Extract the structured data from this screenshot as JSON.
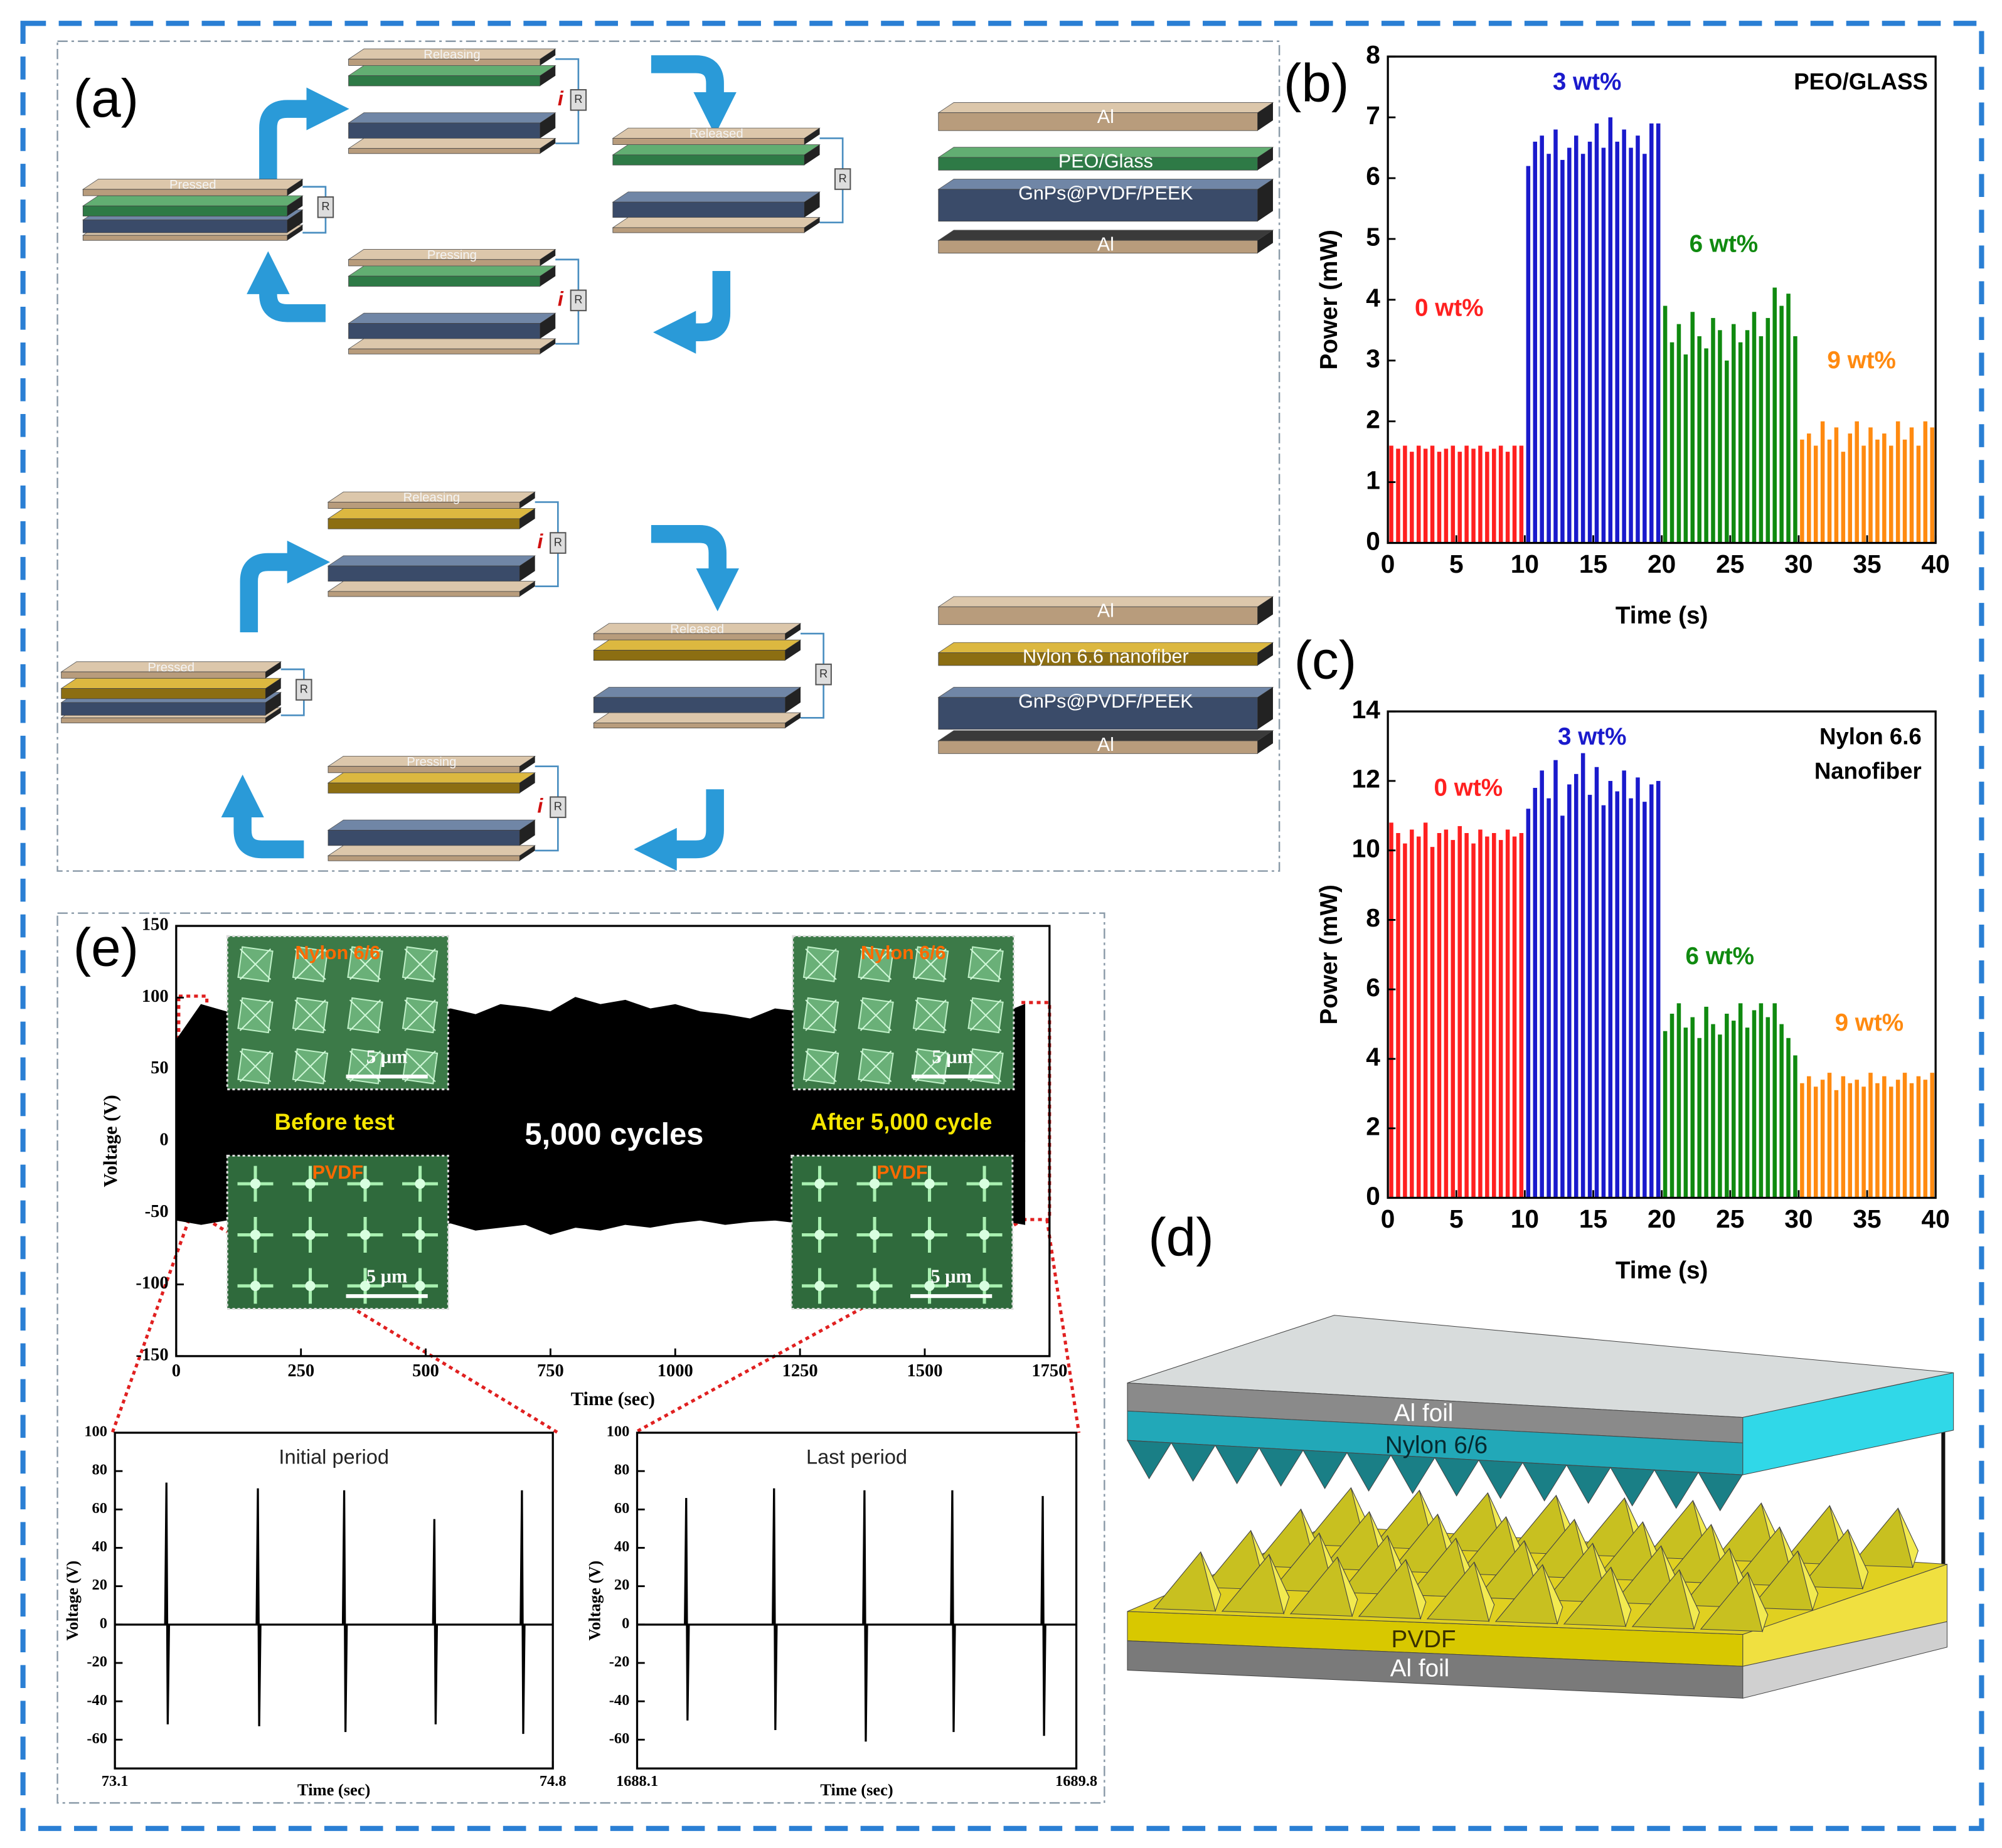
{
  "panel_labels": [
    "(a)",
    "(b)",
    "(c)",
    "(d)",
    "(e)"
  ],
  "diagram_a": {
    "cycles": [
      {
        "steps": [
          "Releasing",
          "Released",
          "Pressed",
          "Pressing"
        ],
        "layers": [
          "Al",
          "PEO/Glass",
          "GnPs@PVDF/PEEK",
          "Al"
        ]
      },
      {
        "steps": [
          "Releasing",
          "Released",
          "Pressed",
          "Pressing"
        ],
        "layers": [
          "Al",
          "Nylon 6.6 nanofiber",
          "GnPs@PVDF/PEEK",
          "Al"
        ]
      }
    ],
    "resistor": "R",
    "current": "i"
  },
  "diagram_d": {
    "layers": [
      "Al foil",
      "Nylon 6/6",
      "PVDF",
      "Al foil"
    ]
  },
  "chart_data": [
    {
      "type": "bar",
      "xlabel": "Time (s)",
      "ylabel": "Power (mW)",
      "annotation": [
        "PEO/GLASS"
      ],
      "xlim": [
        0,
        40
      ],
      "xticks": [
        0,
        5,
        10,
        15,
        20,
        25,
        30,
        35,
        40
      ],
      "ylim": [
        0,
        8
      ],
      "yticks": [
        0,
        1,
        2,
        3,
        4,
        5,
        6,
        7,
        8
      ],
      "series": [
        {
          "name": "0 wt%",
          "color": "#ff2020",
          "x": [
            0.25,
            0.75,
            1.25,
            1.75,
            2.25,
            2.75,
            3.25,
            3.75,
            4.25,
            4.75,
            5.25,
            5.75,
            6.25,
            6.75,
            7.25,
            7.75,
            8.25,
            8.75,
            9.25,
            9.75
          ],
          "values": [
            1.6,
            1.55,
            1.6,
            1.5,
            1.6,
            1.55,
            1.6,
            1.5,
            1.55,
            1.6,
            1.5,
            1.6,
            1.55,
            1.6,
            1.5,
            1.55,
            1.6,
            1.5,
            1.6,
            1.6
          ]
        },
        {
          "name": "3 wt%",
          "color": "#1a1acc",
          "x": [
            10.25,
            10.75,
            11.25,
            11.75,
            12.25,
            12.75,
            13.25,
            13.75,
            14.25,
            14.75,
            15.25,
            15.75,
            16.25,
            16.75,
            17.25,
            17.75,
            18.25,
            18.75,
            19.25,
            19.75
          ],
          "values": [
            6.2,
            6.6,
            6.7,
            6.4,
            6.8,
            6.3,
            6.5,
            6.7,
            6.4,
            6.6,
            6.9,
            6.5,
            7.0,
            6.6,
            6.8,
            6.5,
            6.7,
            6.4,
            6.9,
            6.9
          ]
        },
        {
          "name": "6 wt%",
          "color": "#108a10",
          "x": [
            20.25,
            20.75,
            21.25,
            21.75,
            22.25,
            22.75,
            23.25,
            23.75,
            24.25,
            24.75,
            25.25,
            25.75,
            26.25,
            26.75,
            27.25,
            27.75,
            28.25,
            28.75,
            29.25,
            29.75
          ],
          "values": [
            3.9,
            3.3,
            3.6,
            3.1,
            3.8,
            3.4,
            3.2,
            3.7,
            3.5,
            3.0,
            3.6,
            3.3,
            3.5,
            3.8,
            3.4,
            3.7,
            4.2,
            3.9,
            4.1,
            3.4
          ]
        },
        {
          "name": "9 wt%",
          "color": "#ff8a10",
          "x": [
            30.25,
            30.75,
            31.25,
            31.75,
            32.25,
            32.75,
            33.25,
            33.75,
            34.25,
            34.75,
            35.25,
            35.75,
            36.25,
            36.75,
            37.25,
            37.75,
            38.25,
            38.75,
            39.25,
            39.75
          ],
          "values": [
            1.7,
            1.8,
            1.6,
            2.0,
            1.7,
            1.9,
            1.5,
            1.8,
            2.0,
            1.6,
            1.9,
            1.7,
            1.8,
            1.6,
            2.0,
            1.7,
            1.9,
            1.6,
            2.0,
            1.9
          ]
        }
      ]
    },
    {
      "type": "bar",
      "xlabel": "Time (s)",
      "ylabel": "Power (mW)",
      "annotation": [
        "Nylon 6.6",
        "Nanofiber"
      ],
      "xlim": [
        0,
        40
      ],
      "xticks": [
        0,
        5,
        10,
        15,
        20,
        25,
        30,
        35,
        40
      ],
      "ylim": [
        0,
        14
      ],
      "yticks": [
        0,
        2,
        4,
        6,
        8,
        10,
        12,
        14
      ],
      "series": [
        {
          "name": "0 wt%",
          "color": "#ff2020",
          "x": [
            0.25,
            0.75,
            1.25,
            1.75,
            2.25,
            2.75,
            3.25,
            3.75,
            4.25,
            4.75,
            5.25,
            5.75,
            6.25,
            6.75,
            7.25,
            7.75,
            8.25,
            8.75,
            9.25,
            9.75
          ],
          "values": [
            10.8,
            10.5,
            10.2,
            10.6,
            10.4,
            10.8,
            10.1,
            10.5,
            10.6,
            10.3,
            10.7,
            10.5,
            10.2,
            10.6,
            10.4,
            10.5,
            10.3,
            10.6,
            10.4,
            10.5
          ]
        },
        {
          "name": "3 wt%",
          "color": "#1a1acc",
          "x": [
            10.25,
            10.75,
            11.25,
            11.75,
            12.25,
            12.75,
            13.25,
            13.75,
            14.25,
            14.75,
            15.25,
            15.75,
            16.25,
            16.75,
            17.25,
            17.75,
            18.25,
            18.75,
            19.25,
            19.75
          ],
          "values": [
            11.2,
            11.8,
            12.3,
            11.5,
            12.6,
            11.0,
            11.9,
            12.2,
            12.8,
            11.6,
            12.4,
            11.3,
            12.0,
            11.7,
            12.3,
            11.5,
            12.1,
            11.4,
            11.9,
            12.0
          ]
        },
        {
          "name": "6 wt%",
          "color": "#108a10",
          "x": [
            20.25,
            20.75,
            21.25,
            21.75,
            22.25,
            22.75,
            23.25,
            23.75,
            24.25,
            24.75,
            25.25,
            25.75,
            26.25,
            26.75,
            27.25,
            27.75,
            28.25,
            28.75,
            29.25,
            29.75
          ],
          "values": [
            4.8,
            5.3,
            5.6,
            4.9,
            5.2,
            4.6,
            5.5,
            5.0,
            4.7,
            5.3,
            5.1,
            5.6,
            4.9,
            5.4,
            5.6,
            5.2,
            5.6,
            5.0,
            4.6,
            4.1
          ]
        },
        {
          "name": "9 wt%",
          "color": "#ff8a10",
          "x": [
            30.25,
            30.75,
            31.25,
            31.75,
            32.25,
            32.75,
            33.25,
            33.75,
            34.25,
            34.75,
            35.25,
            35.75,
            36.25,
            36.75,
            37.25,
            37.75,
            38.25,
            38.75,
            39.25,
            39.75
          ],
          "values": [
            3.3,
            3.5,
            3.2,
            3.4,
            3.6,
            3.1,
            3.5,
            3.3,
            3.4,
            3.2,
            3.6,
            3.3,
            3.5,
            3.2,
            3.4,
            3.6,
            3.3,
            3.5,
            3.4,
            3.6
          ]
        }
      ]
    },
    {
      "type": "area",
      "xlabel": "Time (sec)",
      "ylabel": "Voltage (V)",
      "xlim": [
        0,
        1750
      ],
      "xticks": [
        0,
        250,
        500,
        750,
        1000,
        1250,
        1500,
        1750
      ],
      "ylim": [
        -150,
        150
      ],
      "yticks": [
        -150,
        -100,
        -50,
        0,
        50,
        100,
        150
      ],
      "x": [
        0,
        50,
        100,
        150,
        200,
        250,
        300,
        350,
        400,
        450,
        500,
        550,
        600,
        650,
        700,
        750,
        800,
        850,
        900,
        950,
        1000,
        1050,
        1100,
        1150,
        1200,
        1250,
        1300,
        1350,
        1400,
        1450,
        1500,
        1550,
        1600,
        1650,
        1700
      ],
      "series": [
        {
          "color": "#000000",
          "values": [
            70,
            95,
            90,
            80,
            82,
            78,
            85,
            80,
            88,
            86,
            90,
            92,
            88,
            95,
            93,
            90,
            100,
            95,
            98,
            92,
            95,
            90,
            88,
            85,
            92,
            90,
            88,
            86,
            90,
            85,
            80,
            84,
            82,
            88,
            95
          ]
        },
        {
          "color": "#000000",
          "values": [
            -55,
            -58,
            -55,
            -50,
            -52,
            -55,
            -54,
            -56,
            -55,
            -58,
            -60,
            -57,
            -62,
            -60,
            -58,
            -65,
            -60,
            -62,
            -58,
            -60,
            -57,
            -55,
            -58,
            -56,
            -55,
            -57,
            -54,
            -56,
            -55,
            -53,
            -55,
            -54,
            -56,
            -55,
            -58
          ]
        }
      ],
      "annotations": [
        "Before test",
        "5,000 cycles",
        "After 5,000 cycle"
      ],
      "insets": [
        {
          "label": "Nylon 6/6",
          "scale": "5 μm"
        },
        {
          "label": "PVDF",
          "scale": "5 μm"
        },
        {
          "label": "Nylon 6/6",
          "scale": "5 μm"
        },
        {
          "label": "PVDF",
          "scale": "5 μm"
        }
      ]
    },
    {
      "type": "line",
      "title": "Initial period",
      "xlabel": "Time (sec)",
      "ylabel": "Voltage (V)",
      "xlim": [
        73.1,
        74.8
      ],
      "xticks": [
        73.1,
        74.8
      ],
      "ylim": [
        -75,
        100
      ],
      "yticks": [
        -60,
        -40,
        -20,
        0,
        20,
        40,
        60,
        80,
        100
      ],
      "x": [
        73.1,
        73.295,
        73.3,
        73.305,
        73.31,
        73.65,
        73.655,
        73.66,
        73.665,
        73.985,
        73.99,
        73.995,
        74.0,
        74.335,
        74.34,
        74.345,
        74.35,
        74.675,
        74.68,
        74.685,
        74.69,
        74.8
      ],
      "series": [
        {
          "color": "#000000",
          "values": [
            0,
            0,
            74,
            -52,
            0,
            0,
            71,
            -53,
            0,
            0,
            70,
            -56,
            0,
            0,
            55,
            -52,
            0,
            0,
            70,
            -57,
            0,
            0
          ]
        }
      ]
    },
    {
      "type": "line",
      "title": "Last period",
      "xlabel": "Time (sec)",
      "ylabel": "Voltage (V)",
      "xlim": [
        1688.1,
        1689.8
      ],
      "xticks": [
        1688.1,
        1689.8
      ],
      "ylim": [
        -75,
        100
      ],
      "yticks": [
        -60,
        -40,
        -20,
        0,
        20,
        40,
        60,
        80,
        100
      ],
      "x": [
        1688.1,
        1688.285,
        1688.29,
        1688.295,
        1688.3,
        1688.625,
        1688.63,
        1688.635,
        1688.64,
        1688.975,
        1688.98,
        1688.985,
        1688.99,
        1689.315,
        1689.32,
        1689.325,
        1689.33,
        1689.665,
        1689.67,
        1689.675,
        1689.68,
        1689.8
      ],
      "series": [
        {
          "color": "#000000",
          "values": [
            0,
            0,
            66,
            -50,
            0,
            0,
            71,
            -55,
            0,
            0,
            70,
            -61,
            0,
            0,
            70,
            -56,
            0,
            0,
            67,
            -58,
            0,
            0
          ]
        }
      ]
    }
  ]
}
